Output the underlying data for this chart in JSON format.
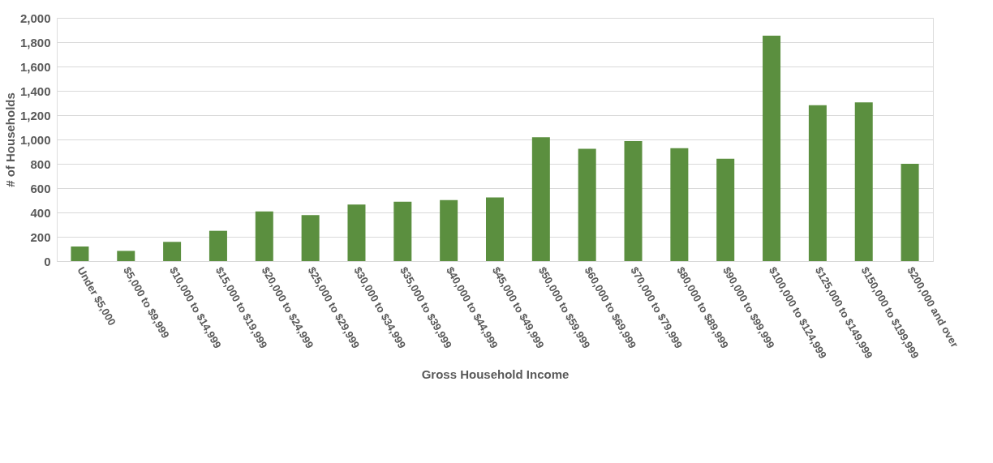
{
  "chart_data": {
    "type": "bar",
    "xlabel": "Gross Household Income",
    "ylabel": "# of Households",
    "categories": [
      "Under $5,000",
      "$5,000 to $9,999",
      "$10,000 to $14,999",
      "$15,000 to $19,999",
      "$20,000 to $24,999",
      "$25,000 to $29,999",
      "$30,000 to $34,999",
      "$35,000 to $39,999",
      "$40,000 to $44,999",
      "$45,000 to $49,999",
      "$50,000 to $59,999",
      "$60,000 to $69,999",
      "$70,000 to $79,999",
      "$80,000 to $89,999",
      "$90,000 to $99,999",
      "$100,000 to $124,999",
      "$125,000 to $149,999",
      "$150,000 to $199,999",
      "$200,000 and over"
    ],
    "values": [
      120,
      84,
      158,
      249,
      409,
      379,
      465,
      488,
      502,
      523,
      1019,
      923,
      986,
      928,
      842,
      1853,
      1281,
      1305,
      800
    ],
    "color": "#5b8f3f",
    "ylim": [
      0,
      2000
    ],
    "yticks": [
      {
        "value": 0,
        "label": "0"
      },
      {
        "value": 200,
        "label": "200"
      },
      {
        "value": 400,
        "label": "400"
      },
      {
        "value": 600,
        "label": "600"
      },
      {
        "value": 800,
        "label": "800"
      },
      {
        "value": 1000,
        "label": "1,000"
      },
      {
        "value": 1200,
        "label": "1,200"
      },
      {
        "value": 1400,
        "label": "1,400"
      },
      {
        "value": 1600,
        "label": "1,600"
      },
      {
        "value": 1800,
        "label": "1,800"
      },
      {
        "value": 2000,
        "label": "2,000"
      }
    ],
    "grid": "y"
  }
}
